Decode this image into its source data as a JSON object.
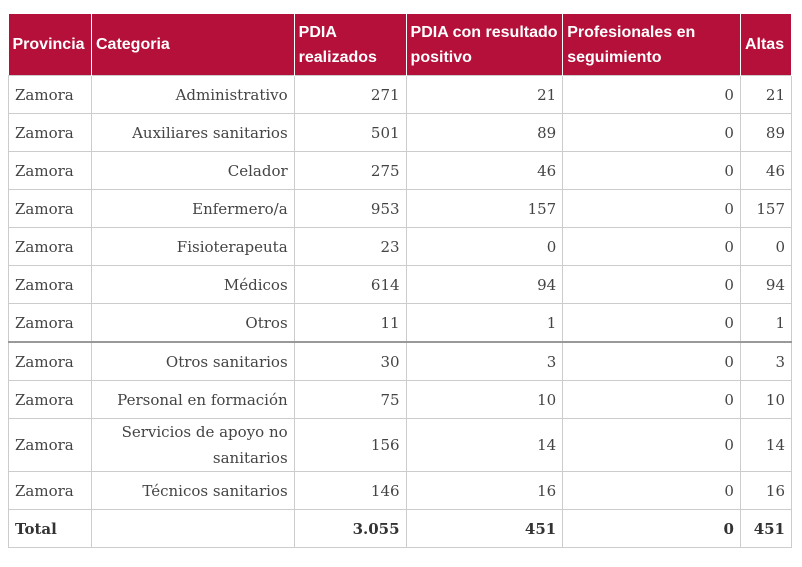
{
  "table": {
    "headers": [
      "Provincia",
      "Categoria",
      "PDIA realizados",
      "PDIA con resultado positivo",
      "Profesionales en seguimiento",
      "Altas"
    ],
    "rows": [
      [
        "Zamora",
        "Administrativo",
        "271",
        "21",
        "0",
        "21"
      ],
      [
        "Zamora",
        "Auxiliares sanitarios",
        "501",
        "89",
        "0",
        "89"
      ],
      [
        "Zamora",
        "Celador",
        "275",
        "46",
        "0",
        "46"
      ],
      [
        "Zamora",
        "Enfermero/a",
        "953",
        "157",
        "0",
        "157"
      ],
      [
        "Zamora",
        "Fisioterapeuta",
        "23",
        "0",
        "0",
        "0"
      ],
      [
        "Zamora",
        "Médicos",
        "614",
        "94",
        "0",
        "94"
      ],
      [
        "Zamora",
        "Otros",
        "11",
        "1",
        "0",
        "1"
      ],
      [
        "Zamora",
        "Otros sanitarios",
        "30",
        "3",
        "0",
        "3"
      ],
      [
        "Zamora",
        "Personal en formación",
        "75",
        "10",
        "0",
        "10"
      ],
      [
        "Zamora",
        "Servicios de apoyo no sanitarios",
        "156",
        "14",
        "0",
        "14"
      ],
      [
        "Zamora",
        "Técnicos sanitarios",
        "146",
        "16",
        "0",
        "16"
      ]
    ],
    "total": {
      "label": "Total",
      "values": [
        "3.055",
        "451",
        "0",
        "451"
      ]
    }
  }
}
